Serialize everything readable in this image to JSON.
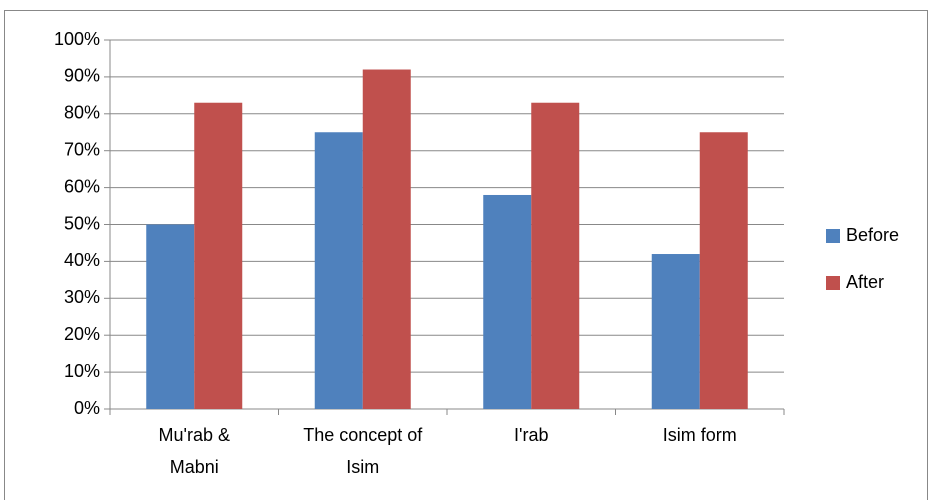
{
  "chart_data": {
    "type": "bar",
    "categories": [
      "Mu'rab & Mabni",
      "The concept of Isim",
      "I'rab",
      "Isim form"
    ],
    "series": [
      {
        "name": "Before",
        "color": "#4f81bd",
        "values": [
          50,
          75,
          58,
          42
        ]
      },
      {
        "name": "After",
        "color": "#c0504d",
        "values": [
          83,
          92,
          83,
          75
        ]
      }
    ],
    "ylim": [
      0,
      100
    ],
    "yticks": [
      {
        "value": 0,
        "label": "0%"
      },
      {
        "value": 10,
        "label": "10%"
      },
      {
        "value": 20,
        "label": "20%"
      },
      {
        "value": 30,
        "label": "30%"
      },
      {
        "value": 40,
        "label": "40%"
      },
      {
        "value": 50,
        "label": "50%"
      },
      {
        "value": 60,
        "label": "60%"
      },
      {
        "value": 70,
        "label": "70%"
      },
      {
        "value": 80,
        "label": "80%"
      },
      {
        "value": 90,
        "label": "90%"
      },
      {
        "value": 100,
        "label": "100%"
      }
    ],
    "grid": true,
    "legend": "right"
  }
}
